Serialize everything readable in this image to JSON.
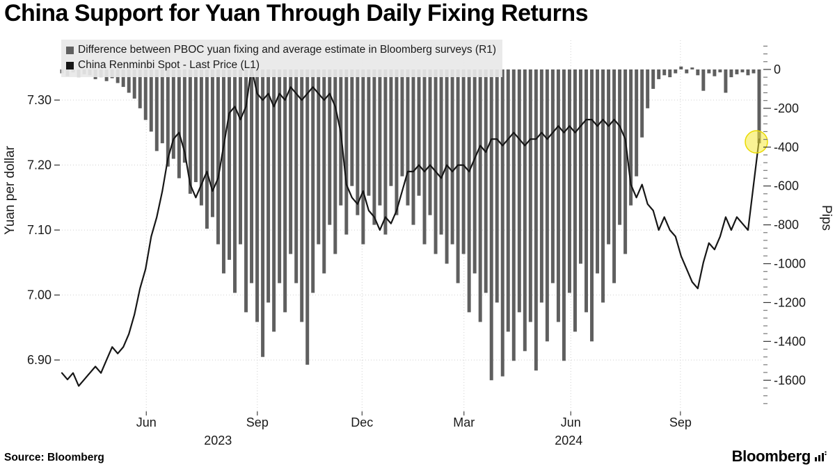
{
  "title": "China Support for Yuan Through Daily Fixing Returns",
  "footer": {
    "source": "Source:  Bloomberg",
    "logo": "Bloomberg"
  },
  "chart_data": {
    "type": "mixed",
    "series": [
      {
        "name": "Difference between PBOC yuan fixing and average estimate in Bloomberg surveys (R1)",
        "type": "bar",
        "axis": "right",
        "color": "#5f5f5f",
        "values": [
          -20,
          -35,
          -15,
          -40,
          -25,
          -30,
          -50,
          -40,
          -60,
          -45,
          -70,
          -90,
          -120,
          -150,
          -200,
          -260,
          -320,
          -420,
          -380,
          -500,
          -460,
          -560,
          -480,
          -640,
          -580,
          -700,
          -820,
          -760,
          -900,
          -1050,
          -980,
          -1150,
          -900,
          -1250,
          -1100,
          -1300,
          -1480,
          -1200,
          -1350,
          -1100,
          -1250,
          -950,
          -1100,
          -1300,
          -1520,
          -1150,
          -900,
          -1050,
          -800,
          -950,
          -700,
          -850,
          -600,
          -750,
          -900,
          -650,
          -800,
          -700,
          -850,
          -600,
          -750,
          -550,
          -700,
          -800,
          -650,
          -900,
          -750,
          -950,
          -850,
          -1000,
          -900,
          -1100,
          -950,
          -1250,
          -1050,
          -1300,
          -1150,
          -1600,
          -1200,
          -1580,
          -1350,
          -1500,
          -1250,
          -1450,
          -1300,
          -1550,
          -1200,
          -1400,
          -1100,
          -1300,
          -1500,
          -1150,
          -1350,
          -1000,
          -1250,
          -1400,
          -1050,
          -1200,
          -900,
          -1100,
          -800,
          -950,
          -700,
          -550,
          -350,
          -200,
          -100,
          -50,
          -30,
          -40,
          -20,
          15,
          -20,
          10,
          -30,
          -110,
          -20,
          -35,
          -15,
          -120,
          -40,
          -25,
          -15,
          -30,
          -20,
          -380
        ]
      },
      {
        "name": "China Renminbi Spot - Last Price (L1)",
        "type": "line",
        "axis": "left",
        "color": "#161616",
        "values": [
          6.88,
          6.87,
          6.88,
          6.86,
          6.87,
          6.88,
          6.89,
          6.88,
          6.9,
          6.92,
          6.91,
          6.92,
          6.94,
          6.97,
          7.01,
          7.04,
          7.09,
          7.12,
          7.16,
          7.21,
          7.24,
          7.25,
          7.22,
          7.17,
          7.15,
          7.17,
          7.19,
          7.16,
          7.18,
          7.23,
          7.28,
          7.29,
          7.27,
          7.29,
          7.35,
          7.31,
          7.3,
          7.31,
          7.29,
          7.31,
          7.3,
          7.32,
          7.31,
          7.3,
          7.31,
          7.32,
          7.31,
          7.3,
          7.31,
          7.29,
          7.25,
          7.17,
          7.15,
          7.14,
          7.16,
          7.13,
          7.12,
          7.1,
          7.12,
          7.11,
          7.13,
          7.16,
          7.19,
          7.19,
          7.2,
          7.19,
          7.2,
          7.19,
          7.18,
          7.2,
          7.19,
          7.2,
          7.2,
          7.19,
          7.21,
          7.23,
          7.22,
          7.24,
          7.24,
          7.23,
          7.24,
          7.25,
          7.24,
          7.23,
          7.24,
          7.24,
          7.25,
          7.24,
          7.25,
          7.26,
          7.25,
          7.26,
          7.25,
          7.26,
          7.27,
          7.27,
          7.26,
          7.27,
          7.26,
          7.27,
          7.26,
          7.24,
          7.17,
          7.15,
          7.17,
          7.14,
          7.13,
          7.1,
          7.12,
          7.1,
          7.09,
          7.06,
          7.04,
          7.02,
          7.01,
          7.05,
          7.08,
          7.07,
          7.09,
          7.12,
          7.1,
          7.12,
          7.11,
          7.1,
          7.17,
          7.24
        ]
      }
    ],
    "left_axis": {
      "label": "Yuan per dollar",
      "min": 6.821,
      "max": 7.392,
      "ticks": [
        {
          "label": "7.30",
          "value": 7.3
        },
        {
          "label": "7.20",
          "value": 7.2
        },
        {
          "label": "7.10",
          "value": 7.1
        },
        {
          "label": "7.00",
          "value": 7.0
        },
        {
          "label": "6.90",
          "value": 6.9
        }
      ]
    },
    "right_axis": {
      "label": "Pips",
      "min": -1760,
      "max": 150,
      "ticks": [
        {
          "label": "0",
          "value": 0
        },
        {
          "label": "-200",
          "value": -200
        },
        {
          "label": "-400",
          "value": -400
        },
        {
          "label": "-600",
          "value": -600
        },
        {
          "label": "-800",
          "value": -800
        },
        {
          "label": "-1000",
          "value": -1000
        },
        {
          "label": "-1200",
          "value": -1200
        },
        {
          "label": "-1400",
          "value": -1400
        },
        {
          "label": "-1600",
          "value": -1600
        }
      ]
    },
    "x_ticks": [
      {
        "label": "Jun",
        "pos": 0.124
      },
      {
        "label": "Sep",
        "pos": 0.282
      },
      {
        "label": "Dec",
        "pos": 0.431
      },
      {
        "label": "Mar",
        "pos": 0.576
      },
      {
        "label": "Jun",
        "pos": 0.728
      },
      {
        "label": "Sep",
        "pos": 0.884
      }
    ],
    "year_labels": [
      {
        "label": "2023",
        "pos": 0.226
      },
      {
        "label": "2024",
        "pos": 0.725
      }
    ],
    "highlight": {
      "index": 125,
      "color": "#f6ea3c"
    },
    "grid": true,
    "legend_position": "top-left"
  }
}
